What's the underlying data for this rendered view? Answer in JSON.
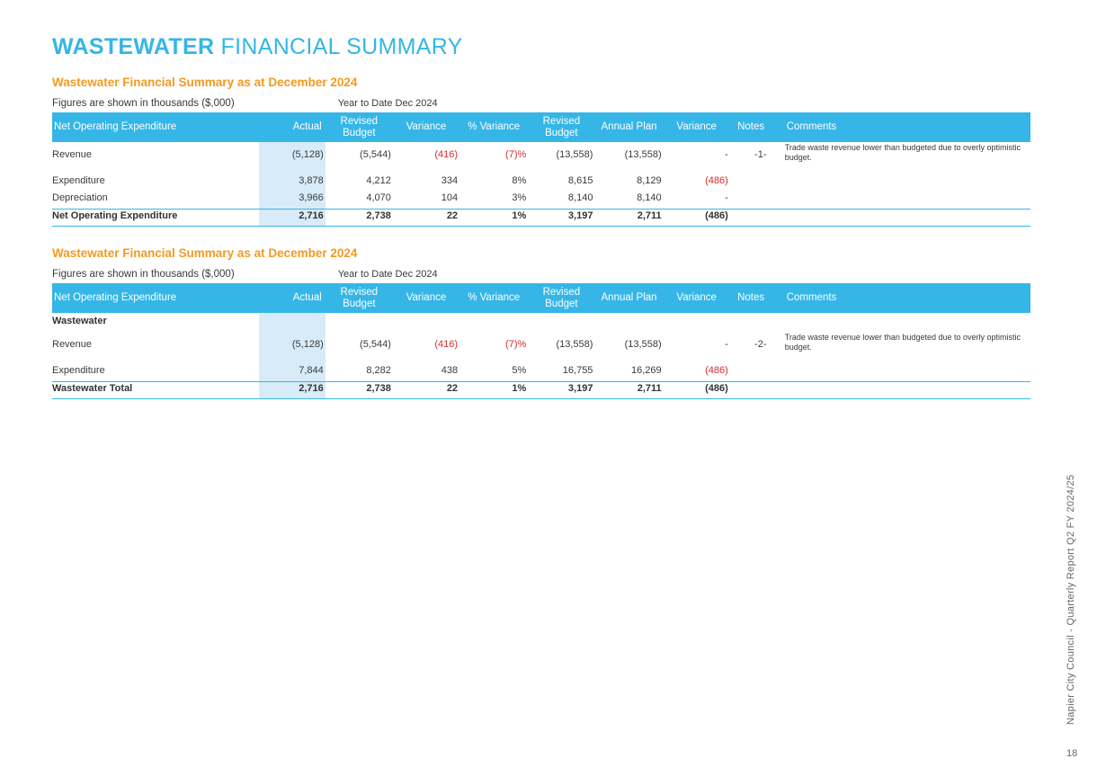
{
  "page_title": {
    "bold": "WASTEWATER",
    "rest": " FINANCIAL SUMMARY"
  },
  "columns": {
    "ytd": "Year to Date  Dec 2024",
    "label": "Net Operating Expenditure",
    "actual": "Actual",
    "revised_budget": "Revised Budget",
    "variance": "Variance",
    "pct_variance": "% Variance",
    "revised_budget2": "Revised Budget",
    "annual_plan": "Annual Plan",
    "variance2": "Variance",
    "notes": "Notes",
    "comments": "Comments"
  },
  "tables": [
    {
      "title": "Wastewater Financial Summary as at December 2024",
      "intro": "Figures are shown in thousands ($,000)",
      "rows": [
        {
          "label": "Revenue",
          "actual": "(5,128)",
          "rev_budget": "(5,544)",
          "variance": "(416)",
          "pct": "(7)%",
          "rev_budget2": "(13,558)",
          "annual_plan": "(13,558)",
          "variance2": "-",
          "notes": "-1-",
          "comment": "Trade waste revenue lower than budgeted due to overly optimistic budget."
        },
        {
          "label": "Expenditure",
          "actual": "3,878",
          "rev_budget": "4,212",
          "variance": "334",
          "pct": "8%",
          "rev_budget2": "8,615",
          "annual_plan": "8,129",
          "variance2": "(486)",
          "notes": "",
          "comment": ""
        },
        {
          "label": "Depreciation",
          "actual": "3,966",
          "rev_budget": "4,070",
          "variance": "104",
          "pct": "3%",
          "rev_budget2": "8,140",
          "annual_plan": "8,140",
          "variance2": "-",
          "notes": "",
          "comment": ""
        }
      ],
      "total": {
        "label": "Net Operating Expenditure",
        "actual": "2,716",
        "rev_budget": "2,738",
        "variance": "22",
        "pct": "1%",
        "rev_budget2": "3,197",
        "annual_plan": "2,711",
        "variance2": "(486)"
      }
    },
    {
      "title": "Wastewater Financial Summary as at December 2024",
      "intro": "Figures are shown in thousands ($,000)",
      "group_label": "Wastewater",
      "rows": [
        {
          "label": "Revenue",
          "actual": "(5,128)",
          "rev_budget": "(5,544)",
          "variance": "(416)",
          "pct": "(7)%",
          "rev_budget2": "(13,558)",
          "annual_plan": "(13,558)",
          "variance2": "-",
          "notes": "-2-",
          "comment": "Trade waste revenue lower than budgeted due to overly optimistic budget."
        },
        {
          "label": "Expenditure",
          "actual": "7,844",
          "rev_budget": "8,282",
          "variance": "438",
          "pct": "5%",
          "rev_budget2": "16,755",
          "annual_plan": "16,269",
          "variance2": "(486)",
          "notes": "",
          "comment": ""
        }
      ],
      "total": {
        "label": "Wastewater Total",
        "actual": "2,716",
        "rev_budget": "2,738",
        "variance": "22",
        "pct": "1%",
        "rev_budget2": "3,197",
        "annual_plan": "2,711",
        "variance2": "(486)"
      }
    }
  ],
  "footer": {
    "side_text": "Napier City Council - Quarterly Report Q2 FY 2024/25",
    "page_number": "18"
  },
  "colors": {
    "accent_blue": "#35b6e6",
    "title_orange": "#f39a1e",
    "negative_red": "#d62b2b",
    "actual_shade": "#d7ebf8"
  }
}
